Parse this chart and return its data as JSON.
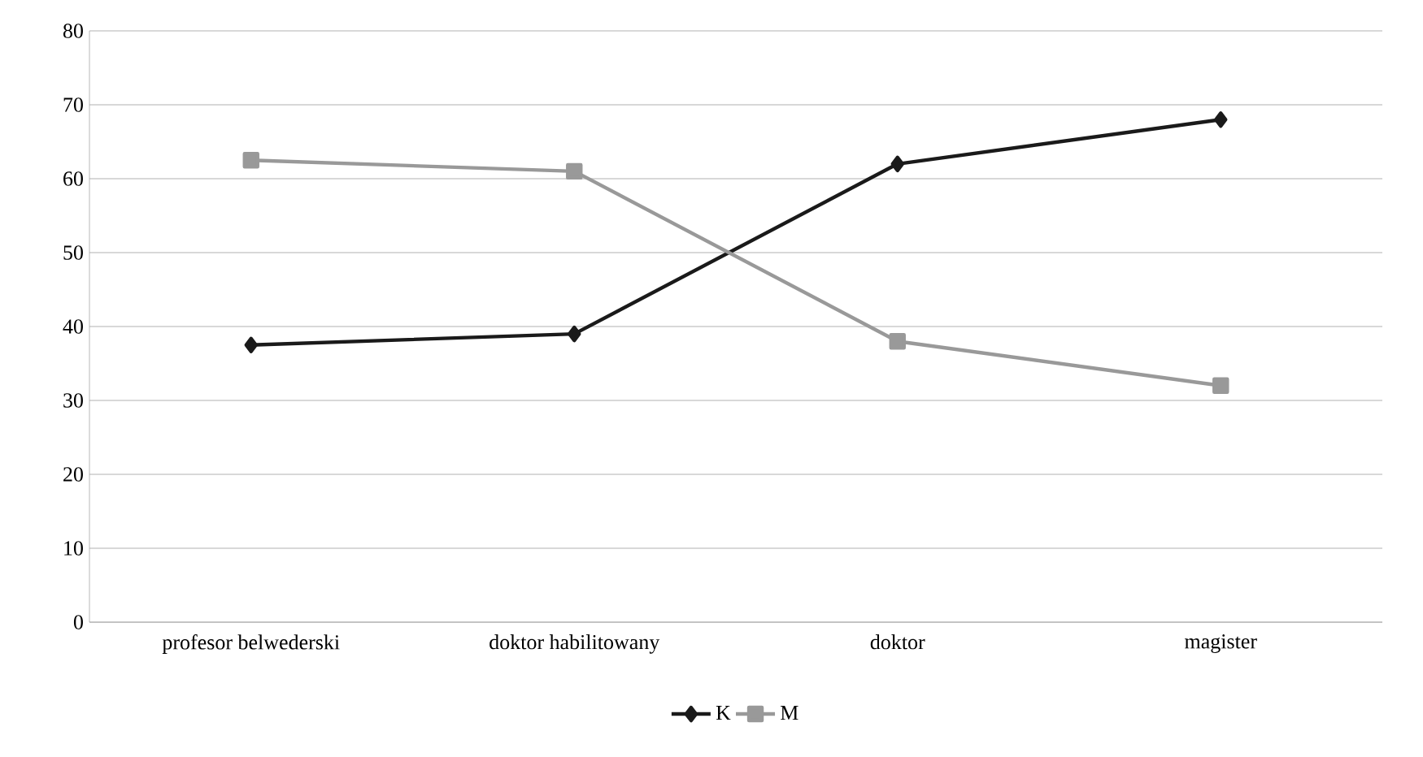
{
  "chart_data": {
    "type": "line",
    "categories": [
      "profesor belwederski",
      "doktor habilitowany",
      "doktor",
      "magister"
    ],
    "series": [
      {
        "name": "K",
        "color": "#1a1a1a",
        "marker": "diamond",
        "values": [
          37.5,
          39,
          62,
          68
        ]
      },
      {
        "name": "M",
        "color": "#999999",
        "marker": "square",
        "values": [
          62.5,
          61,
          38,
          32
        ]
      }
    ],
    "ylim": [
      0,
      80
    ],
    "yticks": [
      0,
      10,
      20,
      30,
      40,
      50,
      60,
      70,
      80
    ],
    "grid": "y",
    "legend": "bottom",
    "line_style": "solid"
  }
}
